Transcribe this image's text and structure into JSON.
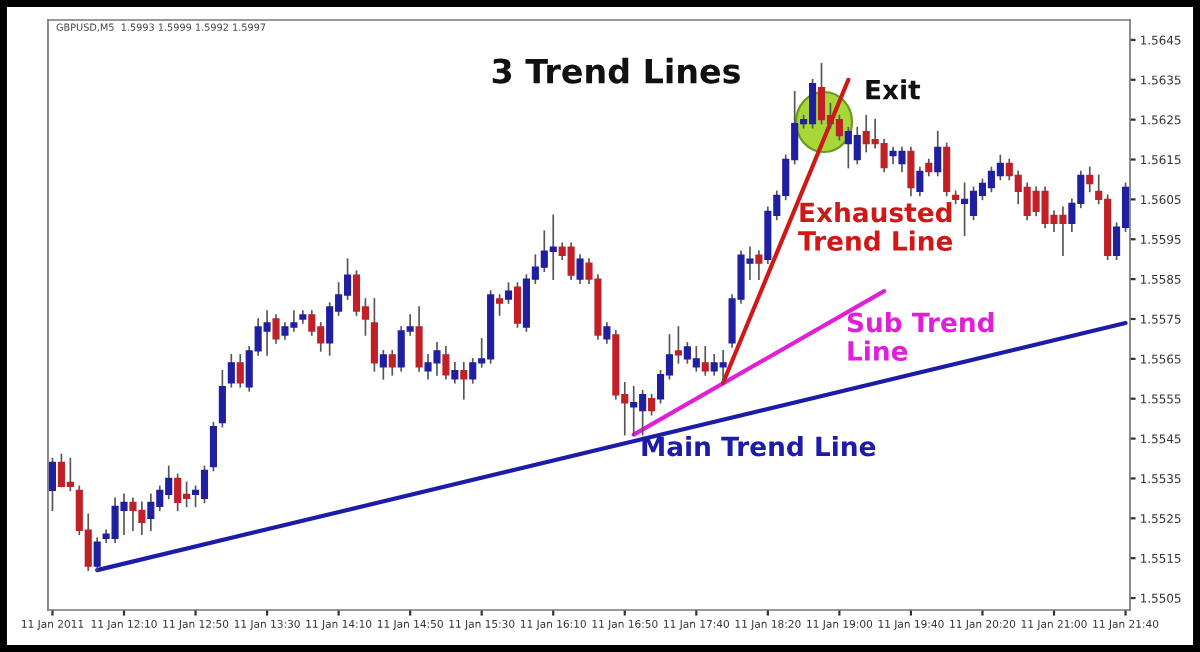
{
  "chart_data": {
    "type": "candlestick",
    "title": "3 Trend Lines",
    "annotations": [
      "GBPUSD,M5  1.5993 1.5999 1.5992 1.5997",
      "Exit"
    ],
    "categories": [
      "11 Jan 2011",
      null,
      null,
      null,
      null,
      null,
      null,
      null,
      "11 Jan 12:10",
      null,
      null,
      null,
      null,
      null,
      null,
      null,
      "11 Jan 12:50",
      null,
      null,
      null,
      null,
      null,
      null,
      null,
      "11 Jan 13:30",
      null,
      null,
      null,
      null,
      null,
      null,
      null,
      "11 Jan 14:10",
      null,
      null,
      null,
      null,
      null,
      null,
      null,
      "11 Jan 14:50",
      null,
      null,
      null,
      null,
      null,
      null,
      null,
      "11 Jan 15:30",
      null,
      null,
      null,
      null,
      null,
      null,
      null,
      "11 Jan 16:10",
      null,
      null,
      null,
      null,
      null,
      null,
      null,
      "11 Jan 16:50",
      null,
      null,
      null,
      null,
      null,
      null,
      null,
      "11 Jan 17:40",
      null,
      null,
      null,
      null,
      null,
      null,
      null,
      "11 Jan 18:20",
      null,
      null,
      null,
      null,
      null,
      null,
      null,
      "11 Jan 19:00",
      null,
      null,
      null,
      null,
      null,
      null,
      null,
      "11 Jan 19:40",
      null,
      null,
      null,
      null,
      null,
      null,
      null,
      "11 Jan 20:20",
      null,
      null,
      null,
      null,
      null,
      null,
      null,
      "11 Jan 21:00",
      null,
      null,
      null,
      null,
      null,
      null,
      null,
      "11 Jan 21:40"
    ],
    "ohlc": [
      [
        1.5532,
        1.554,
        1.5527,
        1.5539
      ],
      [
        1.5539,
        1.5541,
        1.5533,
        1.5533
      ],
      [
        1.5534,
        1.554,
        1.5532,
        1.5533
      ],
      [
        1.5532,
        1.5533,
        1.5521,
        1.5522
      ],
      [
        1.5522,
        1.5526,
        1.5512,
        1.5513
      ],
      [
        1.5513,
        1.552,
        1.5512,
        1.5519
      ],
      [
        1.552,
        1.5522,
        1.5519,
        1.5521
      ],
      [
        1.552,
        1.553,
        1.5519,
        1.5528
      ],
      [
        1.5527,
        1.5531,
        1.5521,
        1.5529
      ],
      [
        1.5529,
        1.553,
        1.5522,
        1.5527
      ],
      [
        1.5527,
        1.5529,
        1.5521,
        1.5524
      ],
      [
        1.5525,
        1.5531,
        1.5522,
        1.5529
      ],
      [
        1.5528,
        1.5533,
        1.5527,
        1.5532
      ],
      [
        1.5531,
        1.5538,
        1.553,
        1.5535
      ],
      [
        1.5535,
        1.5536,
        1.5527,
        1.5529
      ],
      [
        1.5531,
        1.5534,
        1.5528,
        1.553
      ],
      [
        1.5531,
        1.5533,
        1.5528,
        1.5532
      ],
      [
        1.553,
        1.5538,
        1.5529,
        1.5537
      ],
      [
        1.5538,
        1.5549,
        1.5537,
        1.5548
      ],
      [
        1.5549,
        1.5562,
        1.5548,
        1.5558
      ],
      [
        1.5559,
        1.5566,
        1.5558,
        1.5564
      ],
      [
        1.5564,
        1.5566,
        1.5558,
        1.5559
      ],
      [
        1.5558,
        1.5568,
        1.5557,
        1.5567
      ],
      [
        1.5567,
        1.5575,
        1.5566,
        1.5573
      ],
      [
        1.5572,
        1.5577,
        1.5566,
        1.5574
      ],
      [
        1.5575,
        1.5576,
        1.5569,
        1.557
      ],
      [
        1.5571,
        1.5574,
        1.557,
        1.5573
      ],
      [
        1.5573,
        1.5577,
        1.5572,
        1.5574
      ],
      [
        1.5575,
        1.5577,
        1.5574,
        1.5576
      ],
      [
        1.5576,
        1.5577,
        1.5571,
        1.5572
      ],
      [
        1.5573,
        1.5574,
        1.5567,
        1.5569
      ],
      [
        1.5569,
        1.5579,
        1.5566,
        1.5578
      ],
      [
        1.5577,
        1.5584,
        1.5576,
        1.5581
      ],
      [
        1.5581,
        1.559,
        1.558,
        1.5586
      ],
      [
        1.5586,
        1.5587,
        1.5576,
        1.5577
      ],
      [
        1.5578,
        1.558,
        1.5571,
        1.5575
      ],
      [
        1.5574,
        1.558,
        1.5562,
        1.5564
      ],
      [
        1.5563,
        1.5567,
        1.556,
        1.5566
      ],
      [
        1.5566,
        1.5567,
        1.5561,
        1.5563
      ],
      [
        1.5563,
        1.5573,
        1.5562,
        1.5572
      ],
      [
        1.5572,
        1.5576,
        1.5571,
        1.5573
      ],
      [
        1.5573,
        1.5578,
        1.5562,
        1.5563
      ],
      [
        1.5562,
        1.5566,
        1.556,
        1.5564
      ],
      [
        1.5564,
        1.5569,
        1.5561,
        1.5567
      ],
      [
        1.5566,
        1.5568,
        1.556,
        1.5561
      ],
      [
        1.556,
        1.5564,
        1.5559,
        1.5562
      ],
      [
        1.5562,
        1.5564,
        1.5555,
        1.556
      ],
      [
        1.556,
        1.5565,
        1.5559,
        1.5564
      ],
      [
        1.5564,
        1.557,
        1.5563,
        1.5565
      ],
      [
        1.5565,
        1.5582,
        1.5564,
        1.5581
      ],
      [
        1.558,
        1.5581,
        1.5576,
        1.5579
      ],
      [
        1.558,
        1.5584,
        1.5579,
        1.5582
      ],
      [
        1.5583,
        1.5584,
        1.5573,
        1.5574
      ],
      [
        1.5573,
        1.5586,
        1.5572,
        1.5585
      ],
      [
        1.5585,
        1.5591,
        1.5584,
        1.5588
      ],
      [
        1.5588,
        1.5597,
        1.5587,
        1.5592
      ],
      [
        1.5592,
        1.5601,
        1.5585,
        1.5593
      ],
      [
        1.5593,
        1.5594,
        1.559,
        1.5591
      ],
      [
        1.5593,
        1.5594,
        1.5585,
        1.5586
      ],
      [
        1.5585,
        1.5591,
        1.5584,
        1.559
      ],
      [
        1.5589,
        1.559,
        1.5584,
        1.5585
      ],
      [
        1.5585,
        1.5586,
        1.557,
        1.5571
      ],
      [
        1.557,
        1.5574,
        1.5569,
        1.5573
      ],
      [
        1.5571,
        1.5572,
        1.5555,
        1.5556
      ],
      [
        1.5556,
        1.5559,
        1.5546,
        1.5554
      ],
      [
        1.5553,
        1.5558,
        1.5546,
        1.5554
      ],
      [
        1.5552,
        1.5557,
        1.5546,
        1.5556
      ],
      [
        1.5555,
        1.5556,
        1.5551,
        1.5552
      ],
      [
        1.5555,
        1.5562,
        1.5554,
        1.5561
      ],
      [
        1.5561,
        1.5571,
        1.556,
        1.5566
      ],
      [
        1.5567,
        1.5573,
        1.5564,
        1.5566
      ],
      [
        1.5565,
        1.5569,
        1.5564,
        1.5568
      ],
      [
        1.5563,
        1.5568,
        1.5562,
        1.5565
      ],
      [
        1.5564,
        1.5568,
        1.5561,
        1.5562
      ],
      [
        1.5562,
        1.5566,
        1.5561,
        1.5564
      ],
      [
        1.5563,
        1.5567,
        1.5559,
        1.5564
      ],
      [
        1.5569,
        1.5581,
        1.5568,
        1.558
      ],
      [
        1.558,
        1.5592,
        1.5579,
        1.5591
      ],
      [
        1.5589,
        1.5593,
        1.5585,
        1.559
      ],
      [
        1.5591,
        1.5592,
        1.5585,
        1.5589
      ],
      [
        1.559,
        1.5603,
        1.5589,
        1.5602
      ],
      [
        1.5601,
        1.5607,
        1.56,
        1.5606
      ],
      [
        1.5606,
        1.5616,
        1.5605,
        1.5615
      ],
      [
        1.5615,
        1.5632,
        1.5614,
        1.5624
      ],
      [
        1.5624,
        1.5626,
        1.5623,
        1.5625
      ],
      [
        1.5624,
        1.5635,
        1.5623,
        1.5634
      ],
      [
        1.5633,
        1.5639,
        1.5624,
        1.5625
      ],
      [
        1.5626,
        1.5629,
        1.5623,
        1.5624
      ],
      [
        1.5625,
        1.5626,
        1.562,
        1.5621
      ],
      [
        1.5619,
        1.5623,
        1.5613,
        1.5622
      ],
      [
        1.5615,
        1.5623,
        1.5614,
        1.5621
      ],
      [
        1.5622,
        1.5626,
        1.5617,
        1.5619
      ],
      [
        1.562,
        1.5625,
        1.5618,
        1.5619
      ],
      [
        1.5619,
        1.562,
        1.5612,
        1.5613
      ],
      [
        1.5616,
        1.5618,
        1.5614,
        1.5617
      ],
      [
        1.5614,
        1.5618,
        1.5612,
        1.5617
      ],
      [
        1.5617,
        1.5618,
        1.5606,
        1.5608
      ],
      [
        1.5607,
        1.5613,
        1.5606,
        1.5612
      ],
      [
        1.5614,
        1.5615,
        1.5611,
        1.5612
      ],
      [
        1.5612,
        1.5622,
        1.5611,
        1.5618
      ],
      [
        1.5618,
        1.5619,
        1.5606,
        1.5607
      ],
      [
        1.5606,
        1.5607,
        1.5604,
        1.5605
      ],
      [
        1.5604,
        1.5609,
        1.5596,
        1.5605
      ],
      [
        1.5601,
        1.5608,
        1.56,
        1.5607
      ],
      [
        1.5606,
        1.561,
        1.5605,
        1.5609
      ],
      [
        1.5608,
        1.5613,
        1.5607,
        1.5612
      ],
      [
        1.5611,
        1.5616,
        1.561,
        1.5614
      ],
      [
        1.5614,
        1.5615,
        1.561,
        1.5611
      ],
      [
        1.5611,
        1.5612,
        1.5604,
        1.5607
      ],
      [
        1.5608,
        1.5609,
        1.56,
        1.5601
      ],
      [
        1.5607,
        1.5608,
        1.5601,
        1.5602
      ],
      [
        1.5607,
        1.5608,
        1.5598,
        1.5599
      ],
      [
        1.5601,
        1.5602,
        1.5597,
        1.5599
      ],
      [
        1.5601,
        1.5603,
        1.5591,
        1.5599
      ],
      [
        1.5599,
        1.5605,
        1.5597,
        1.5604
      ],
      [
        1.5604,
        1.5612,
        1.5603,
        1.5611
      ],
      [
        1.5611,
        1.5613,
        1.5607,
        1.5609
      ],
      [
        1.5607,
        1.5611,
        1.5604,
        1.5605
      ],
      [
        1.5605,
        1.5606,
        1.559,
        1.5591
      ],
      [
        1.5591,
        1.5599,
        1.559,
        1.5598
      ],
      [
        1.5598,
        1.5609,
        1.5597,
        1.5608
      ]
    ],
    "series": [
      {
        "name": "Main Trend Line",
        "type": "line",
        "color": "#1c1ca8",
        "values": [
          null,
          null,
          null,
          null,
          null,
          1.5512,
          null,
          null,
          null,
          null,
          null,
          null,
          null,
          null,
          null,
          null,
          null,
          null,
          null,
          null,
          null,
          null,
          null,
          null,
          null,
          null,
          null,
          null,
          null,
          null,
          null,
          null,
          null,
          null,
          null,
          null,
          null,
          null,
          null,
          null,
          null,
          null,
          null,
          null,
          null,
          null,
          null,
          null,
          null,
          null,
          null,
          null,
          null,
          null,
          null,
          null,
          null,
          null,
          null,
          null,
          null,
          null,
          null,
          null,
          null,
          null,
          null,
          null,
          null,
          null,
          null,
          null,
          null,
          null,
          null,
          null,
          null,
          null,
          null,
          null,
          null,
          null,
          null,
          null,
          null,
          null,
          null,
          null,
          null,
          null,
          null,
          null,
          null,
          null,
          null,
          null,
          null,
          null,
          null,
          null,
          null,
          null,
          null,
          null,
          null,
          null,
          null,
          null,
          null,
          null,
          null,
          null,
          null,
          null,
          null,
          null,
          null,
          null,
          null,
          null,
          1.5574
        ]
      },
      {
        "name": "Sub Trend Line",
        "type": "line",
        "color": "#e020d8",
        "values": [
          null,
          null,
          null,
          null,
          null,
          null,
          null,
          null,
          null,
          null,
          null,
          null,
          null,
          null,
          null,
          null,
          null,
          null,
          null,
          null,
          null,
          null,
          null,
          null,
          null,
          null,
          null,
          null,
          null,
          null,
          null,
          null,
          null,
          null,
          null,
          null,
          null,
          null,
          null,
          null,
          null,
          null,
          null,
          null,
          null,
          null,
          null,
          null,
          null,
          null,
          null,
          null,
          null,
          null,
          null,
          null,
          null,
          null,
          null,
          null,
          null,
          null,
          null,
          null,
          null,
          1.5546,
          null,
          null,
          null,
          null,
          null,
          null,
          null,
          null,
          null,
          null,
          null,
          null,
          null,
          null,
          null,
          null,
          null,
          null,
          null,
          null,
          null,
          null,
          null,
          null,
          null,
          null,
          null,
          1.5582,
          null,
          null,
          null,
          null,
          null,
          null,
          null,
          null,
          null,
          null,
          null,
          null,
          null,
          null,
          null,
          null,
          null,
          null,
          null,
          null,
          null,
          null,
          null,
          null,
          null,
          null,
          null
        ]
      },
      {
        "name": "Exhausted Trend Line",
        "type": "line",
        "color": "#d01818",
        "values": [
          null,
          null,
          null,
          null,
          null,
          null,
          null,
          null,
          null,
          null,
          null,
          null,
          null,
          null,
          null,
          null,
          null,
          null,
          null,
          null,
          null,
          null,
          null,
          null,
          null,
          null,
          null,
          null,
          null,
          null,
          null,
          null,
          null,
          null,
          null,
          null,
          null,
          null,
          null,
          null,
          null,
          null,
          null,
          null,
          null,
          null,
          null,
          null,
          null,
          null,
          null,
          null,
          null,
          null,
          null,
          null,
          null,
          null,
          null,
          null,
          null,
          null,
          null,
          null,
          null,
          null,
          null,
          null,
          null,
          null,
          null,
          null,
          null,
          null,
          null,
          1.5559,
          null,
          null,
          null,
          null,
          null,
          null,
          null,
          null,
          null,
          null,
          null,
          null,
          null,
          1.5635,
          null,
          null,
          null,
          null,
          null,
          null,
          null,
          null,
          null,
          null,
          null,
          null,
          null,
          null,
          null,
          null,
          null,
          null,
          null,
          null,
          null,
          null,
          null,
          null,
          null,
          null,
          null,
          null,
          null,
          null,
          null
        ]
      }
    ],
    "ylim": [
      1.5502,
      1.565
    ],
    "yticks": [
      1.5505,
      1.5515,
      1.5525,
      1.5535,
      1.5545,
      1.5555,
      1.5565,
      1.5575,
      1.5585,
      1.5595,
      1.5605,
      1.5615,
      1.5625,
      1.5635,
      1.5645
    ]
  }
}
